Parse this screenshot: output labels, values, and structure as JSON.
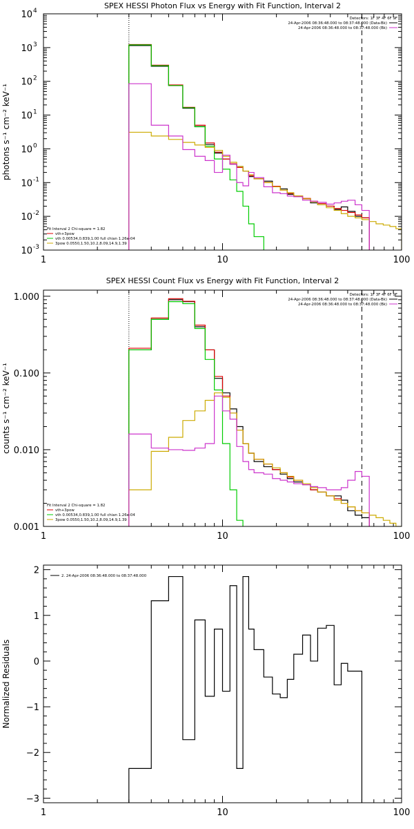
{
  "chart_data": [
    {
      "type": "line",
      "title": "SPEX HESSI Photon Flux vs Energy with Fit Function, Interval 2",
      "ylabel": "photons s⁻¹ cm⁻² keV⁻¹",
      "xlabel": "",
      "xscale": "log",
      "yscale": "log",
      "xlim": [
        1,
        100
      ],
      "ylim": [
        0.001,
        10000
      ],
      "xticks": [
        {
          "v": 1,
          "label": "1"
        },
        {
          "v": 10,
          "label": "10"
        },
        {
          "v": 100,
          "label": "100"
        }
      ],
      "yticks": [
        {
          "v": 0.001,
          "base": "10",
          "exp": "-3"
        },
        {
          "v": 0.01,
          "base": "10",
          "exp": "-2"
        },
        {
          "v": 0.1,
          "base": "10",
          "exp": "-1"
        },
        {
          "v": 1,
          "base": "10",
          "exp": "0"
        },
        {
          "v": 10,
          "base": "10",
          "exp": "1"
        },
        {
          "v": 100,
          "base": "10",
          "exp": "2"
        },
        {
          "v": 1000,
          "base": "10",
          "exp": "3"
        },
        {
          "v": 10000,
          "base": "10",
          "exp": "4"
        }
      ],
      "vlines": [
        {
          "x": 3.0,
          "style": "dotted"
        },
        {
          "x": 60,
          "style": "dashed"
        }
      ],
      "legend_top": [
        {
          "text": "Detectors: 1F 3F 4F 6F 9F",
          "color": ""
        },
        {
          "text": "24-Apr-2006 08:36:48.000 to 08:37:48.000 (Data-Bk)",
          "color": "#000000"
        },
        {
          "text": "24-Apr-2006 08:36:48.000 to 08:37:48.000 (Bk)",
          "color": "#cc33cc"
        }
      ],
      "legend_bottom": [
        {
          "text": "Fit Interval  2    Chi-square = 1.82",
          "color": ""
        },
        {
          "text": "vth+3pow",
          "color": "#dd0000"
        },
        {
          "text": "vth 0.00534,0.839,1.00   full chian 1.26e-04",
          "color": "#00cc00"
        },
        {
          "text": "3pow 0.0550,1.50,10.2,8.09,14.9,1.39",
          "color": "#ccaa00"
        }
      ],
      "edges": [
        3.0,
        4.0,
        5.0,
        6.0,
        7.0,
        8.0,
        9.0,
        10.0,
        11.0,
        12.0,
        13.0,
        14.0,
        15.0,
        17.0,
        19.0,
        21.0,
        23.0,
        25.0,
        28.0,
        31.0,
        34.0,
        38.0,
        42.0,
        46.0,
        50.0,
        55.0,
        60.0,
        66.0,
        72.0,
        79.0,
        86.0,
        93.0,
        100.0
      ],
      "series": [
        {
          "name": "",
          "color": "#000000",
          "values": [
            1150,
            280,
            75,
            16,
            4.6,
            1.35,
            0.75,
            0.5,
            0.35,
            0.3,
            0.22,
            0.15,
            0.13,
            0.11,
            0.075,
            0.065,
            0.045,
            0.04,
            0.033,
            0.025,
            0.022,
            0.02,
            0.016,
            0.019,
            0.014,
            0.01,
            0.009
          ]
        },
        {
          "name": "",
          "color": "#dd0000",
          "values": [
            1230,
            300,
            78,
            17,
            5.0,
            1.5,
            0.8,
            0.5,
            0.36,
            0.28,
            0.22,
            0.16,
            0.13,
            0.1,
            0.078,
            0.06,
            0.048,
            0.04,
            0.034,
            0.028,
            0.024,
            0.02,
            0.017,
            0.015,
            0.013,
            0.011,
            0.009
          ]
        },
        {
          "name": "",
          "color": "#00cc00",
          "values": [
            1200,
            290,
            75,
            16.5,
            4.5,
            1.2,
            0.5,
            0.25,
            0.12,
            0.055,
            0.02,
            0.006,
            0.0025
          ]
        },
        {
          "name": "",
          "color": "#ccaa00",
          "values": [
            3.1,
            2.4,
            1.9,
            1.55,
            1.3,
            1.1,
            0.9,
            0.6,
            0.4,
            0.3,
            0.22,
            0.17,
            0.13,
            0.1,
            0.075,
            0.06,
            0.05,
            0.04,
            0.033,
            0.027,
            0.022,
            0.018,
            0.015,
            0.012,
            0.01,
            0.009,
            0.008,
            0.007,
            0.006,
            0.0055,
            0.005,
            0.0043
          ]
        },
        {
          "name": "",
          "color": "#cc33cc",
          "values": [
            85,
            5,
            2.4,
            0.95,
            0.6,
            0.45,
            0.2,
            0.65,
            0.35,
            0.1,
            0.08,
            0.2,
            0.14,
            0.075,
            0.05,
            0.047,
            0.04,
            0.038,
            0.03,
            0.028,
            0.026,
            0.023,
            0.025,
            0.028,
            0.03,
            0.022,
            0.015
          ]
        }
      ]
    },
    {
      "type": "line",
      "title": "SPEX HESSI Count Flux vs Energy with Fit Function, Interval 2",
      "ylabel": "counts s⁻¹ cm⁻² keV⁻¹",
      "xlabel": "",
      "xscale": "log",
      "yscale": "log",
      "xlim": [
        1,
        100
      ],
      "ylim": [
        0.001,
        1.2
      ],
      "xticks": [
        {
          "v": 1,
          "label": "1"
        },
        {
          "v": 10,
          "label": "10"
        },
        {
          "v": 100,
          "label": "100"
        }
      ],
      "yticks": [
        {
          "v": 0.001,
          "label": "0.001"
        },
        {
          "v": 0.01,
          "label": "0.010"
        },
        {
          "v": 0.1,
          "label": "0.100"
        },
        {
          "v": 1,
          "label": "1.000"
        }
      ],
      "vlines": [
        {
          "x": 3.0,
          "style": "dotted"
        },
        {
          "x": 60,
          "style": "dashed"
        }
      ],
      "legend_top": [
        {
          "text": "Detectors: 1F 3F 4F 6F 9F",
          "color": ""
        },
        {
          "text": "24-Apr-2006 08:36:48.000 to 08:37:48.000 (Data-Bk)",
          "color": "#000000"
        },
        {
          "text": "24-Apr-2006 08:36:48.000 to 08:37:48.000 (Bk)",
          "color": "#cc33cc"
        }
      ],
      "legend_bottom": [
        {
          "text": "Fit Interval  2    Chi-square = 1.82",
          "color": ""
        },
        {
          "text": "vth+3pow",
          "color": "#dd0000"
        },
        {
          "text": "vth 0.00534,0.839,1.00   full chian 1.26e-04",
          "color": "#00cc00"
        },
        {
          "text": "3pow 0.0550,1.50,10.2,8.09,14.9,1.39",
          "color": "#ccaa00"
        }
      ],
      "edges": [
        3.0,
        4.0,
        5.0,
        6.0,
        7.0,
        8.0,
        9.0,
        10.0,
        11.0,
        12.0,
        13.0,
        14.0,
        15.0,
        17.0,
        19.0,
        21.0,
        23.0,
        25.0,
        28.0,
        31.0,
        34.0,
        38.0,
        42.0,
        46.0,
        50.0,
        55.0,
        60.0,
        66.0,
        72.0,
        79.0,
        86.0,
        93.0,
        100.0
      ],
      "series": [
        {
          "name": "",
          "color": "#000000",
          "values": [
            0.2,
            0.5,
            0.9,
            0.85,
            0.4,
            0.2,
            0.085,
            0.055,
            0.034,
            0.02,
            0.012,
            0.009,
            0.007,
            0.006,
            0.0055,
            0.0048,
            0.0042,
            0.0038,
            0.0035,
            0.003,
            0.0028,
            0.0025,
            0.0025,
            0.0022,
            0.0016,
            0.0014,
            0.0013
          ]
        },
        {
          "name": "",
          "color": "#dd0000",
          "values": [
            0.21,
            0.52,
            0.93,
            0.86,
            0.42,
            0.2,
            0.09,
            0.05,
            0.03,
            0.018,
            0.012,
            0.009,
            0.0075,
            0.0065,
            0.0055,
            0.005,
            0.0044,
            0.004,
            0.0035,
            0.003,
            0.0028,
            0.0025,
            0.0023,
            0.002,
            0.0018,
            0.0016,
            0.0015
          ]
        },
        {
          "name": "",
          "color": "#00cc00",
          "values": [
            0.2,
            0.5,
            0.85,
            0.8,
            0.38,
            0.15,
            0.06,
            0.012,
            0.003,
            0.0012
          ]
        },
        {
          "name": "",
          "color": "#ccaa00",
          "values": [
            0.003,
            0.0095,
            0.0145,
            0.024,
            0.032,
            0.044,
            0.055,
            0.048,
            0.03,
            0.018,
            0.012,
            0.009,
            0.0075,
            0.0065,
            0.0058,
            0.005,
            0.0045,
            0.004,
            0.0036,
            0.0032,
            0.0028,
            0.0025,
            0.0022,
            0.002,
            0.0018,
            0.0016,
            0.0015,
            0.0014,
            0.0013,
            0.0012,
            0.0011,
            0.001
          ]
        },
        {
          "name": "",
          "color": "#cc33cc",
          "values": [
            0.016,
            0.0105,
            0.01,
            0.0098,
            0.0105,
            0.012,
            0.05,
            0.032,
            0.025,
            0.011,
            0.007,
            0.0055,
            0.005,
            0.0048,
            0.0042,
            0.004,
            0.0038,
            0.0036,
            0.0035,
            0.0033,
            0.0032,
            0.003,
            0.003,
            0.0032,
            0.004,
            0.0052,
            0.0045
          ]
        }
      ]
    },
    {
      "type": "line",
      "title": "",
      "ylabel": "Normalized Residuals",
      "xlabel": "",
      "xscale": "log",
      "yscale": "linear",
      "xlim": [
        1,
        100
      ],
      "ylim": [
        -3.1,
        2.1
      ],
      "xticks": [
        {
          "v": 1,
          "label": "1"
        },
        {
          "v": 10,
          "label": "10"
        },
        {
          "v": 100,
          "label": "100"
        }
      ],
      "yticks": [
        {
          "v": -3,
          "label": "−3"
        },
        {
          "v": -2,
          "label": "−2"
        },
        {
          "v": -1,
          "label": "−1"
        },
        {
          "v": 0,
          "label": "0"
        },
        {
          "v": 1,
          "label": "1"
        },
        {
          "v": 2,
          "label": "2"
        }
      ],
      "legend_top": [
        {
          "text": "2. 24-Apr-2006 08:36:48.000 to 08:37:48.000",
          "color": "#000000"
        }
      ],
      "edges": [
        3.0,
        4.0,
        5.0,
        6.0,
        7.0,
        8.0,
        9.0,
        10.0,
        11.0,
        12.0,
        13.0,
        14.0,
        15.0,
        17.0,
        19.0,
        21.0,
        23.0,
        25.0,
        28.0,
        31.0,
        34.0,
        38.0,
        42.0,
        46.0,
        50.0,
        55.0,
        60.0
      ],
      "series": [
        {
          "name": "",
          "color": "#000000",
          "values": [
            -2.35,
            1.32,
            1.85,
            -1.72,
            0.9,
            -0.77,
            0.7,
            -0.66,
            1.65,
            -2.35,
            1.85,
            0.7,
            0.25,
            -0.35,
            -0.72,
            -0.8,
            -0.4,
            0.15,
            0.57,
            0.0,
            0.72,
            0.78,
            -0.52,
            -0.05,
            -0.22,
            -0.22
          ]
        }
      ]
    }
  ]
}
